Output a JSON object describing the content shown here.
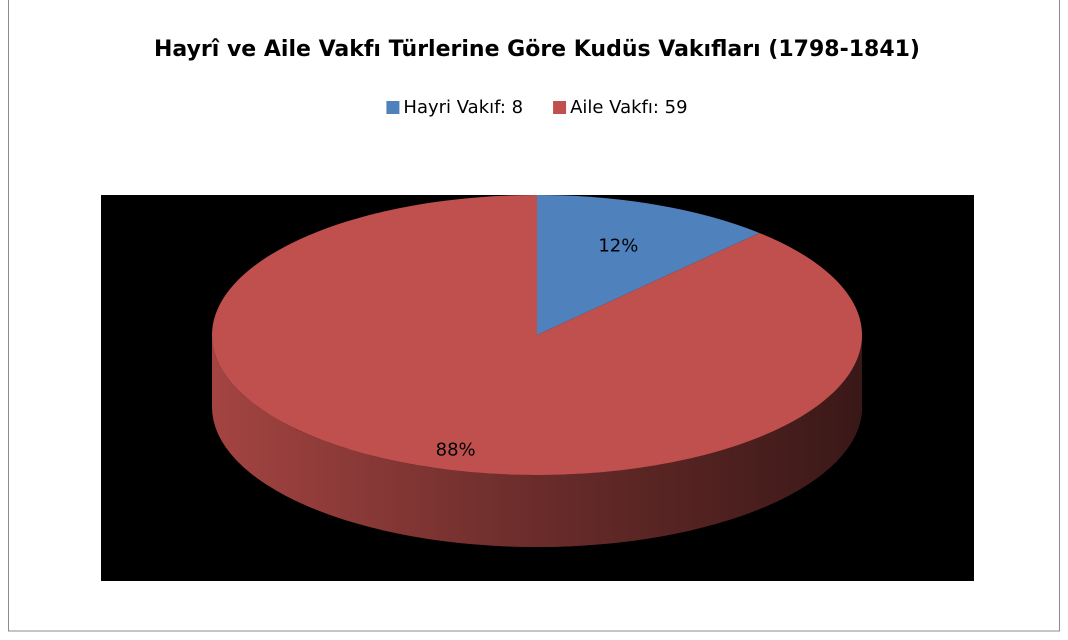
{
  "chart_data": {
    "type": "pie",
    "title": "Hayrî ve Aile Vakfı Türlerine Göre Kudüs Vakıfları (1798-1841)",
    "categories": [
      "Hayri Vakıf: 8",
      "Aile Vakfı: 59"
    ],
    "values": [
      12,
      88
    ],
    "value_labels": [
      "12%",
      "88%"
    ],
    "colors": [
      "#4f81bd",
      "#c0504d"
    ],
    "legend": "top"
  }
}
